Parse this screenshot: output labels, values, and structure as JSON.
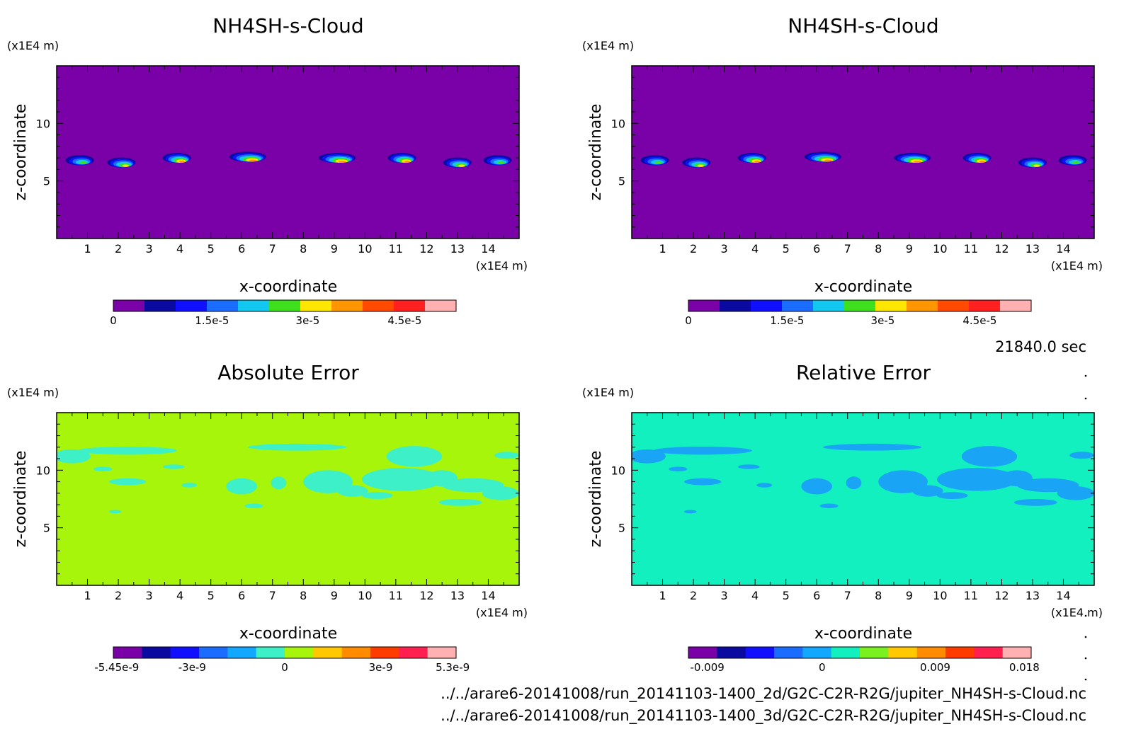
{
  "time_label": "21840.0 sec",
  "footer": {
    "line1": "../../arare6-20141008/run_20141103-1400_2d/G2C-C2R-R2G/jupiter_NH4SH-s-Cloud.nc",
    "line2": "../../arare6-20141008/run_20141103-1400_3d/G2C-C2R-R2G/jupiter_NH4SH-s-Cloud.nc"
  },
  "chart_data": [
    {
      "type": "heatmap",
      "title": "NH4SH-s-Cloud",
      "xlabel": "x-coordinate",
      "ylabel": "z-coordinate",
      "x_unit": "(x1E4 m)",
      "y_unit": "(x1E4 m)",
      "xlim": [
        0,
        15
      ],
      "ylim": [
        0,
        15
      ],
      "x_ticks": [
        "1",
        "2",
        "3",
        "4",
        "5",
        "6",
        "7",
        "8",
        "9",
        "10",
        "11",
        "12",
        "13",
        "14"
      ],
      "y_ticks": [
        "5",
        "10"
      ],
      "background_color": "#7a00a8",
      "colorbar": {
        "colors": [
          "#7a00a8",
          "#0a0aa0",
          "#1010ff",
          "#1a6dff",
          "#12c8f0",
          "#3ee01e",
          "#ffe600",
          "#ff9600",
          "#ff4a00",
          "#ff2020",
          "#ffb0b0"
        ],
        "ticks": [
          "0",
          "1.5e-5",
          "3e-5",
          "4.5e-5"
        ]
      },
      "clouds": [
        {
          "x": 0.75,
          "z": 6.8,
          "level": 5
        },
        {
          "x": 2.1,
          "z": 6.6,
          "level": 6
        },
        {
          "x": 3.9,
          "z": 7.0,
          "level": 7
        },
        {
          "x": 6.2,
          "z": 7.1,
          "level": 7
        },
        {
          "x": 9.1,
          "z": 7.0,
          "level": 7
        },
        {
          "x": 11.2,
          "z": 7.0,
          "level": 7
        },
        {
          "x": 13.0,
          "z": 6.6,
          "level": 6
        },
        {
          "x": 14.3,
          "z": 6.8,
          "level": 5
        }
      ]
    },
    {
      "type": "heatmap",
      "title": "NH4SH-s-Cloud",
      "xlabel": "x-coordinate",
      "ylabel": "z-coordinate",
      "x_unit": "(x1E4 m)",
      "y_unit": "(x1E4 m)",
      "xlim": [
        0,
        15
      ],
      "ylim": [
        0,
        15
      ],
      "x_ticks": [
        "1",
        "2",
        "3",
        "4",
        "5",
        "6",
        "7",
        "8",
        "9",
        "10",
        "11",
        "12",
        "13",
        "14"
      ],
      "y_ticks": [
        "5",
        "10"
      ],
      "background_color": "#7a00a8",
      "colorbar": {
        "colors": [
          "#7a00a8",
          "#0a0aa0",
          "#1010ff",
          "#1a6dff",
          "#12c8f0",
          "#3ee01e",
          "#ffe600",
          "#ff9600",
          "#ff4a00",
          "#ff2020",
          "#ffb0b0"
        ],
        "ticks": [
          "0",
          "1.5e-5",
          "3e-5",
          "4.5e-5"
        ]
      },
      "clouds": [
        {
          "x": 0.75,
          "z": 6.8,
          "level": 5
        },
        {
          "x": 2.1,
          "z": 6.6,
          "level": 6
        },
        {
          "x": 3.9,
          "z": 7.0,
          "level": 7
        },
        {
          "x": 6.2,
          "z": 7.1,
          "level": 7
        },
        {
          "x": 9.1,
          "z": 7.0,
          "level": 7
        },
        {
          "x": 11.2,
          "z": 7.0,
          "level": 7
        },
        {
          "x": 13.0,
          "z": 6.6,
          "level": 6
        },
        {
          "x": 14.3,
          "z": 6.8,
          "level": 5
        }
      ]
    },
    {
      "type": "heatmap",
      "title": "Absolute Error",
      "xlabel": "x-coordinate",
      "ylabel": "z-coordinate",
      "x_unit": "(x1E4 m)",
      "y_unit": "(x1E4 m)",
      "xlim": [
        0,
        15
      ],
      "ylim": [
        0,
        15
      ],
      "x_ticks": [
        "1",
        "2",
        "3",
        "4",
        "5",
        "6",
        "7",
        "8",
        "9",
        "10",
        "11",
        "12",
        "13",
        "14"
      ],
      "y_ticks": [
        "5",
        "10"
      ],
      "background_color": "#a6f50a",
      "patch_color": "#3ef0c8",
      "colorbar": {
        "colors": [
          "#7a00a8",
          "#0a0aa0",
          "#1010ff",
          "#1a6dff",
          "#12a8ff",
          "#3ef0c8",
          "#a6f50a",
          "#ffc800",
          "#ff8c00",
          "#ff3c00",
          "#ff2050",
          "#ffb0b0"
        ],
        "ticks": [
          "-5.45e-9",
          "-3e-9",
          "0",
          "3e-9",
          "5.3e-9"
        ]
      },
      "patches": [
        {
          "x": 0.5,
          "z": 11.2,
          "rx": 0.6,
          "ry": 0.6
        },
        {
          "x": 2.3,
          "z": 11.7,
          "rx": 1.6,
          "ry": 0.35
        },
        {
          "x": 1.5,
          "z": 10.1,
          "rx": 0.3,
          "ry": 0.2
        },
        {
          "x": 3.8,
          "z": 10.3,
          "rx": 0.35,
          "ry": 0.2
        },
        {
          "x": 2.3,
          "z": 9.0,
          "rx": 0.6,
          "ry": 0.3
        },
        {
          "x": 4.3,
          "z": 8.7,
          "rx": 0.25,
          "ry": 0.2
        },
        {
          "x": 6.0,
          "z": 8.6,
          "rx": 0.5,
          "ry": 0.7
        },
        {
          "x": 7.2,
          "z": 8.9,
          "rx": 0.25,
          "ry": 0.55
        },
        {
          "x": 8.8,
          "z": 9.0,
          "rx": 0.8,
          "ry": 1.0
        },
        {
          "x": 9.6,
          "z": 8.2,
          "rx": 0.5,
          "ry": 0.5
        },
        {
          "x": 7.8,
          "z": 12.0,
          "rx": 1.6,
          "ry": 0.3
        },
        {
          "x": 6.4,
          "z": 6.9,
          "rx": 0.3,
          "ry": 0.2
        },
        {
          "x": 11.6,
          "z": 11.2,
          "rx": 0.9,
          "ry": 0.9
        },
        {
          "x": 11.2,
          "z": 9.2,
          "rx": 1.3,
          "ry": 1.0
        },
        {
          "x": 12.5,
          "z": 9.3,
          "rx": 0.5,
          "ry": 0.7
        },
        {
          "x": 13.5,
          "z": 8.7,
          "rx": 1.0,
          "ry": 0.6
        },
        {
          "x": 14.4,
          "z": 8.0,
          "rx": 0.6,
          "ry": 0.6
        },
        {
          "x": 13.1,
          "z": 7.2,
          "rx": 0.7,
          "ry": 0.3
        },
        {
          "x": 10.4,
          "z": 7.8,
          "rx": 0.5,
          "ry": 0.3
        },
        {
          "x": 14.6,
          "z": 11.3,
          "rx": 0.4,
          "ry": 0.3
        },
        {
          "x": 1.9,
          "z": 6.4,
          "rx": 0.2,
          "ry": 0.15
        }
      ]
    },
    {
      "type": "heatmap",
      "title": "Relative Error",
      "xlabel": "x-coordinate",
      "ylabel": "z-coordinate",
      "x_unit": "(x1E4 m)",
      "y_unit": "(x1E4 m)",
      "xlim": [
        0,
        15
      ],
      "ylim": [
        0,
        15
      ],
      "x_ticks": [
        "1",
        "2",
        "3",
        "4",
        "5",
        "6",
        "7",
        "8",
        "9",
        "10",
        "11",
        "12",
        "13",
        "14"
      ],
      "y_ticks": [
        "5",
        "10"
      ],
      "background_color": "#12f0c0",
      "patch_color": "#19a4f5",
      "colorbar": {
        "colors": [
          "#7a00a8",
          "#0a0aa0",
          "#1010ff",
          "#1a6dff",
          "#12a8ff",
          "#12f0c0",
          "#7af020",
          "#ffc800",
          "#ff8c00",
          "#ff3c00",
          "#ff2050",
          "#ffb0b0"
        ],
        "ticks": [
          "-0.009",
          "0",
          "0.009",
          "0.018"
        ]
      },
      "patches": [
        {
          "x": 0.5,
          "z": 11.2,
          "rx": 0.6,
          "ry": 0.6
        },
        {
          "x": 2.3,
          "z": 11.7,
          "rx": 1.6,
          "ry": 0.35
        },
        {
          "x": 1.5,
          "z": 10.1,
          "rx": 0.3,
          "ry": 0.2
        },
        {
          "x": 3.8,
          "z": 10.3,
          "rx": 0.35,
          "ry": 0.2
        },
        {
          "x": 2.3,
          "z": 9.0,
          "rx": 0.6,
          "ry": 0.3
        },
        {
          "x": 4.3,
          "z": 8.7,
          "rx": 0.25,
          "ry": 0.2
        },
        {
          "x": 6.0,
          "z": 8.6,
          "rx": 0.5,
          "ry": 0.7
        },
        {
          "x": 7.2,
          "z": 8.9,
          "rx": 0.25,
          "ry": 0.55
        },
        {
          "x": 8.8,
          "z": 9.0,
          "rx": 0.8,
          "ry": 1.0
        },
        {
          "x": 9.6,
          "z": 8.2,
          "rx": 0.5,
          "ry": 0.5
        },
        {
          "x": 7.8,
          "z": 12.0,
          "rx": 1.6,
          "ry": 0.3
        },
        {
          "x": 6.4,
          "z": 6.9,
          "rx": 0.3,
          "ry": 0.2
        },
        {
          "x": 11.6,
          "z": 11.2,
          "rx": 0.9,
          "ry": 0.9
        },
        {
          "x": 11.2,
          "z": 9.2,
          "rx": 1.3,
          "ry": 1.0
        },
        {
          "x": 12.5,
          "z": 9.3,
          "rx": 0.5,
          "ry": 0.7
        },
        {
          "x": 13.5,
          "z": 8.7,
          "rx": 1.0,
          "ry": 0.6
        },
        {
          "x": 14.4,
          "z": 8.0,
          "rx": 0.6,
          "ry": 0.6
        },
        {
          "x": 13.1,
          "z": 7.2,
          "rx": 0.7,
          "ry": 0.3
        },
        {
          "x": 10.4,
          "z": 7.8,
          "rx": 0.5,
          "ry": 0.3
        },
        {
          "x": 14.6,
          "z": 11.3,
          "rx": 0.4,
          "ry": 0.3
        },
        {
          "x": 1.9,
          "z": 6.4,
          "rx": 0.2,
          "ry": 0.15
        }
      ]
    }
  ]
}
